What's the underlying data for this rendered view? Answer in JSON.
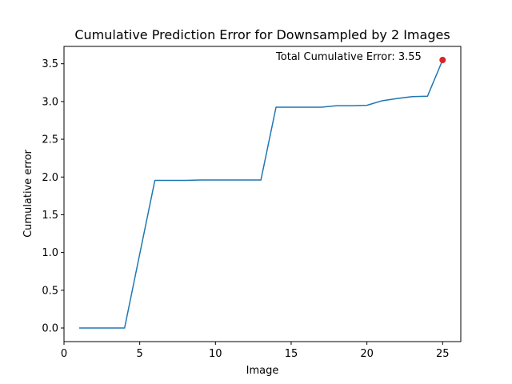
{
  "chart_data": {
    "type": "line",
    "title": "Cumulative Prediction Error for Downsampled by 2 Images",
    "xlabel": "Image",
    "ylabel": "Cumulative error",
    "xlim": [
      0,
      26.2
    ],
    "ylim": [
      -0.18,
      3.73
    ],
    "xticks": [
      0,
      5,
      10,
      15,
      20,
      25
    ],
    "yticks": [
      0.0,
      0.5,
      1.0,
      1.5,
      2.0,
      2.5,
      3.0,
      3.5
    ],
    "ytick_labels": [
      "0.0",
      "0.5",
      "1.0",
      "1.5",
      "2.0",
      "2.5",
      "3.0",
      "3.5"
    ],
    "grid": false,
    "series": [
      {
        "color": "#1f77b4",
        "x": [
          1,
          2,
          3,
          4,
          5,
          6,
          7,
          8,
          9,
          10,
          11,
          12,
          13,
          14,
          15,
          16,
          17,
          18,
          19,
          20,
          21,
          22,
          23,
          24,
          25
        ],
        "y": [
          0.0,
          0.0,
          0.0,
          0.0,
          0.98,
          1.955,
          1.955,
          1.955,
          1.96,
          1.96,
          1.96,
          1.96,
          1.96,
          2.925,
          2.925,
          2.925,
          2.925,
          2.945,
          2.945,
          2.95,
          3.01,
          3.04,
          3.065,
          3.07,
          3.55
        ]
      }
    ],
    "highlight_point": {
      "x": 25,
      "y": 3.55,
      "color": "#d62728"
    },
    "annotation": {
      "text": "Total Cumulative Error: 3.55",
      "x": 14,
      "y": 3.55
    }
  }
}
